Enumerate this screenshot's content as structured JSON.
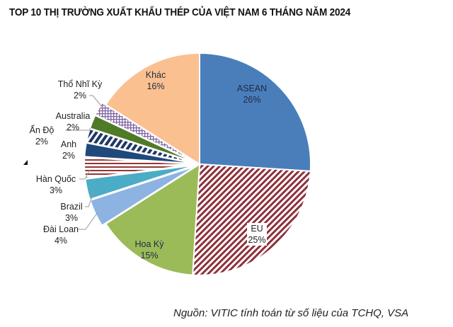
{
  "title": "TOP 10 THỊ TRƯỜNG XUẤT KHẨU THÉP CỦA VIỆT NAM 6 THÁNG NĂM 2024",
  "source": "Nguồn: VITIC tính toán từ số liệu của TCHQ, VSA",
  "chart_data": {
    "type": "pie",
    "title": "TOP 10 THỊ TRƯỜNG XUẤT KHẨU THÉP CỦA VIỆT NAM 6 THÁNG NĂM 2024",
    "start_angle_deg": 0,
    "direction": "clockwise",
    "unit": "%",
    "categories": [
      "ASEAN",
      "EU",
      "Hoa Kỳ",
      "Đài Loan",
      "Brazil",
      "Hàn Quốc",
      "Anh",
      "Ấn Độ",
      "Australia",
      "Thổ Nhĩ Kỳ",
      "Khác"
    ],
    "values": [
      26,
      25,
      15,
      4,
      3,
      3,
      2,
      2,
      2,
      2,
      16
    ],
    "labels": [
      "26%",
      "25%",
      "15%",
      "4%",
      "3%",
      "3%",
      "2%",
      "2%",
      "2%",
      "2%",
      "16%"
    ],
    "colors": [
      "#4a7ebb",
      "#8b2f3a",
      "#9bbb59",
      "#8db3e2",
      "#4bacc6",
      "#943634",
      "#1f497d",
      "#1f3864",
      "#4f7a28",
      "#8064a2",
      "#fac090"
    ],
    "patterns": [
      "solid",
      "diagonal-stripes",
      "solid",
      "solid",
      "solid",
      "horizontal-stripes",
      "solid",
      "wide-diagonal-stripes",
      "solid",
      "crosshatch",
      "solid"
    ],
    "legend": "none (data labels with leader lines)",
    "source": "Nguồn: VITIC tính toán từ số liệu của TCHQ, VSA"
  }
}
